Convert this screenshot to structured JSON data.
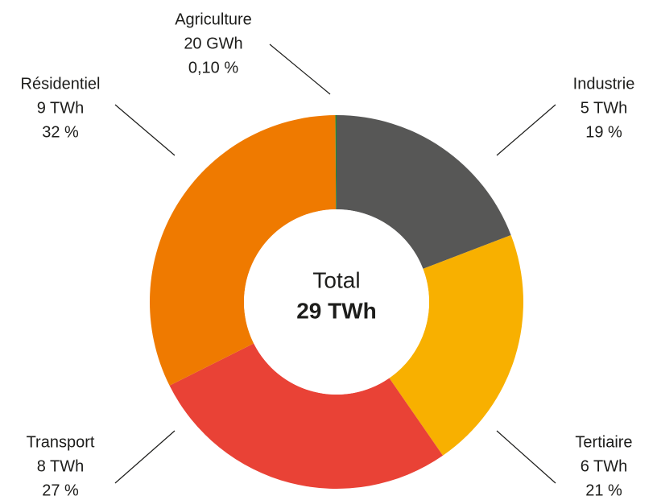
{
  "chart_data": {
    "type": "donut",
    "center_label": "Total",
    "total": "29 TWh",
    "categories": [
      "Industrie",
      "Tertiaire",
      "Transport",
      "Résidentiel",
      "Agriculture"
    ],
    "values": [
      19,
      21,
      27,
      32,
      0.1
    ],
    "value_labels": [
      "19 %",
      "21 %",
      "27 %",
      "32 %",
      "0,10 %"
    ],
    "energy_labels": [
      "5 TWh",
      "6 TWh",
      "8 TWh",
      "9 TWh",
      "20 GWh"
    ],
    "colors": [
      "#575756",
      "#f8b000",
      "#e94236",
      "#ef7a00",
      "#1a8a3a"
    ]
  }
}
